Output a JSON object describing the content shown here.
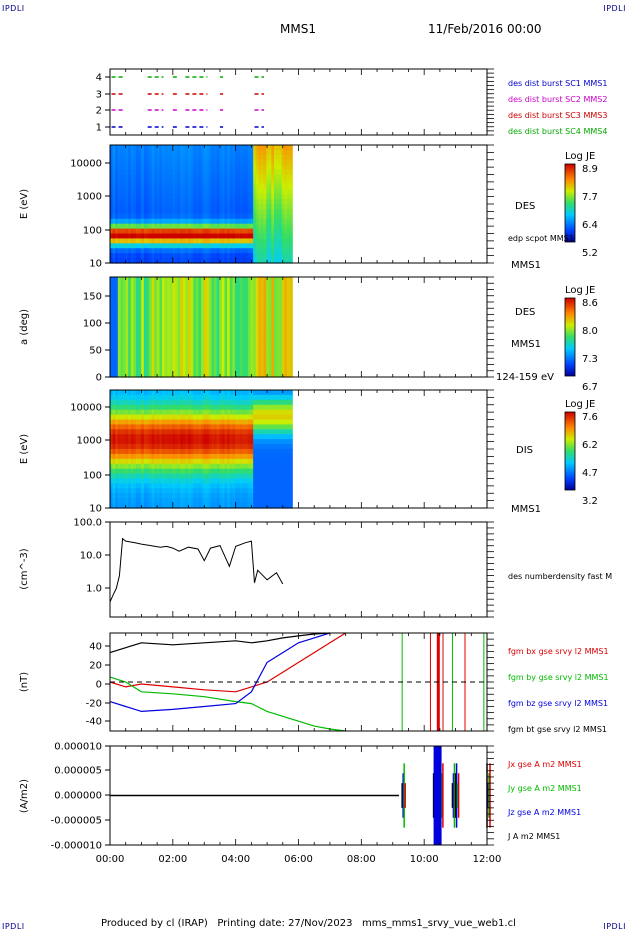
{
  "header": {
    "corner_label": "IPDLI",
    "spacecraft": "MMS1",
    "date_time": "11/Feb/2016 00:00"
  },
  "footer": {
    "text": "Produced by cl (IRAP)   Printing date: 27/Nov/2023   mms_mms1_srvy_vue_web1.cl"
  },
  "panels": {
    "burst": {
      "yticks": [
        "1",
        "2",
        "3",
        "4"
      ],
      "legend": [
        {
          "text": "des dist burst SC1 MMS1",
          "color": "#0000cc"
        },
        {
          "text": "des dist burst SC2 MMS2",
          "color": "#cc00cc"
        },
        {
          "text": "des dist burst SC3 MMS3",
          "color": "#cc0000"
        },
        {
          "text": "des dist burst SC4 MMS4",
          "color": "#00aa00"
        }
      ]
    },
    "des_energy": {
      "ylabel": "E (eV)",
      "yticks": [
        "10",
        "100",
        "1000",
        "10000"
      ],
      "right_label": "DES",
      "right_sub": "edp scpot MMS1",
      "bottom_right": "MMS1",
      "cbar_title": "Log JE",
      "cbar_ticks": [
        "8.9",
        "7.7",
        "6.4",
        "5.2"
      ]
    },
    "des_pitch": {
      "ylabel": "a (deg)",
      "yticks": [
        "0",
        "50",
        "100",
        "150"
      ],
      "right_label": "DES",
      "right_sub": "MMS1",
      "bottom_right": "124-159 eV",
      "cbar_title": "Log JE",
      "cbar_ticks": [
        "8.6",
        "8.0",
        "7.3",
        "6.7"
      ]
    },
    "dis_energy": {
      "ylabel": "E (eV)",
      "yticks": [
        "10",
        "100",
        "1000",
        "10000"
      ],
      "right_label": "DIS",
      "bottom_right": "MMS1",
      "cbar_title": "Log JE",
      "cbar_ticks": [
        "7.6",
        "6.2",
        "4.7",
        "3.2"
      ]
    },
    "density": {
      "ylabel": "(cm^-3)",
      "yticks": [
        "1.0",
        "10.0",
        "100.0"
      ],
      "right_label": "des numberdensity fast M"
    },
    "bfield": {
      "ylabel": "(nT)",
      "yticks": [
        "-40",
        "-20",
        "0",
        "20",
        "40"
      ],
      "legend": [
        {
          "text": "fgm bx gse srvy l2 MMS1",
          "color": "#dd0000"
        },
        {
          "text": "fgm by gse srvy l2 MMS1",
          "color": "#00bb00"
        },
        {
          "text": "fgm bz gse srvy l2 MMS1",
          "color": "#0000dd"
        },
        {
          "text": "fgm bt gse srvy l2 MMS1",
          "color": "#000000"
        }
      ]
    },
    "current": {
      "ylabel": "(A/m2)",
      "yticks": [
        "-0.000010",
        "-0.000005",
        "0.000000",
        "0.000005",
        "0.000010"
      ],
      "legend": [
        {
          "text": "Jx gse A m2 MMS1",
          "color": "#dd0000"
        },
        {
          "text": "Jy gse A m2 MMS1",
          "color": "#00bb00"
        },
        {
          "text": "Jz gse A m2 MMS1",
          "color": "#0000dd"
        },
        {
          "text": "J A m2 MMS1",
          "color": "#000000"
        }
      ]
    }
  },
  "xaxis": {
    "ticks": [
      "00:00",
      "02:00",
      "04:00",
      "06:00",
      "08:00",
      "10:00",
      "12:00"
    ]
  },
  "chart_data": [
    {
      "type": "scatter",
      "panel": "burst",
      "x_unit": "hours",
      "xlim": [
        0,
        12
      ],
      "ylim": [
        0.5,
        4.5
      ],
      "series": [
        {
          "name": "des dist burst SC1 MMS1",
          "y": 1,
          "color": "#0000cc",
          "intervals": [
            [
              0.05,
              0.45
            ],
            [
              1.2,
              1.7
            ],
            [
              2.0,
              2.2
            ],
            [
              2.4,
              3.1
            ],
            [
              3.5,
              3.6
            ],
            [
              4.6,
              4.9
            ]
          ]
        },
        {
          "name": "des dist burst SC2 MMS2",
          "y": 2,
          "color": "#cc00cc",
          "intervals": [
            [
              0.05,
              0.45
            ],
            [
              1.2,
              1.7
            ],
            [
              2.0,
              2.2
            ],
            [
              2.4,
              3.1
            ],
            [
              3.5,
              3.6
            ],
            [
              4.6,
              4.9
            ]
          ]
        },
        {
          "name": "des dist burst SC3 MMS3",
          "y": 3,
          "color": "#cc0000",
          "intervals": [
            [
              0.05,
              0.45
            ],
            [
              1.2,
              1.7
            ],
            [
              2.0,
              2.2
            ],
            [
              2.4,
              3.1
            ],
            [
              3.5,
              3.6
            ],
            [
              4.6,
              4.9
            ]
          ]
        },
        {
          "name": "des dist burst SC4 MMS4",
          "y": 4,
          "color": "#00aa00",
          "intervals": [
            [
              0.05,
              0.45
            ],
            [
              1.2,
              1.7
            ],
            [
              2.0,
              2.2
            ],
            [
              2.4,
              3.1
            ],
            [
              3.5,
              3.6
            ],
            [
              4.6,
              4.9
            ]
          ]
        }
      ]
    },
    {
      "type": "heatmap",
      "panel": "des_energy",
      "x_unit": "hours",
      "xlim": [
        0,
        12
      ],
      "y_scale": "log",
      "ylim": [
        10,
        30000
      ],
      "data_end_hour": 5.8,
      "colorbar": {
        "title": "Log JE",
        "range": [
          5.2,
          8.9
        ]
      },
      "profile": "electron plasma sheet band near 50-100 eV until ~04:30, broad 1000-10000 eV afterwards"
    },
    {
      "type": "heatmap",
      "panel": "des_pitch",
      "x_unit": "hours",
      "xlim": [
        0,
        12
      ],
      "ylim": [
        0,
        180
      ],
      "data_end_hour": 5.8,
      "colorbar": {
        "title": "Log JE",
        "range": [
          6.7,
          8.6
        ]
      }
    },
    {
      "type": "heatmap",
      "panel": "dis_energy",
      "x_unit": "hours",
      "xlim": [
        0,
        12
      ],
      "y_scale": "log",
      "ylim": [
        10,
        30000
      ],
      "data_end_hour": 5.8,
      "colorbar": {
        "title": "Log JE",
        "range": [
          3.2,
          7.6
        ]
      }
    },
    {
      "type": "line",
      "panel": "density",
      "name": "des numberdensity fast M",
      "x_unit": "hours",
      "y_scale": "log",
      "ylim": [
        0.1,
        100
      ],
      "x": [
        0.0,
        0.1,
        0.2,
        0.3,
        0.4,
        0.5,
        0.8,
        1.0,
        1.3,
        1.6,
        1.8,
        2.0,
        2.2,
        2.5,
        2.8,
        3.0,
        3.2,
        3.5,
        3.8,
        4.0,
        4.3,
        4.5,
        4.6,
        4.7,
        5.0,
        5.3,
        5.5
      ],
      "y": [
        0.3,
        0.5,
        0.8,
        2.0,
        30,
        25,
        22,
        20,
        18,
        16,
        17,
        15,
        12,
        16,
        14,
        6,
        15,
        18,
        4,
        17,
        22,
        25,
        1.2,
        3,
        1.5,
        2.5,
        1.1
      ]
    },
    {
      "type": "line",
      "panel": "bfield",
      "x_unit": "hours",
      "ylim": [
        -50,
        50
      ],
      "series": [
        {
          "name": "fgm bx gse srvy l2 MMS1",
          "color": "#dd0000",
          "x": [
            0,
            0.5,
            1,
            2,
            3,
            4,
            4.5,
            5,
            5.5,
            6,
            6.5,
            7,
            7.5
          ],
          "y": [
            0,
            -5,
            -2,
            -5,
            -8,
            -10,
            -5,
            0,
            10,
            20,
            30,
            40,
            50
          ]
        },
        {
          "name": "fgm by gse srvy l2 MMS1",
          "color": "#00bb00",
          "x": [
            0,
            0.5,
            1,
            2,
            3,
            4,
            4.5,
            5,
            5.5,
            6,
            6.5,
            7,
            7.5
          ],
          "y": [
            5,
            0,
            -10,
            -12,
            -15,
            -20,
            -22,
            -30,
            -35,
            -40,
            -45,
            -48,
            -50
          ]
        },
        {
          "name": "fgm bz gse srvy l2 MMS1",
          "color": "#0000dd",
          "x": [
            0,
            0.5,
            1,
            2,
            3,
            4,
            4.5,
            5,
            5.5,
            6,
            6.5,
            7
          ],
          "y": [
            -20,
            -25,
            -30,
            -28,
            -25,
            -22,
            -10,
            20,
            30,
            40,
            45,
            50
          ]
        },
        {
          "name": "fgm bt gse srvy l2 MMS1",
          "color": "#000000",
          "x": [
            0,
            0.5,
            1,
            2,
            3,
            4,
            4.5,
            5,
            5.5,
            6,
            6.5,
            7
          ],
          "y": [
            30,
            35,
            40,
            38,
            40,
            42,
            40,
            42,
            45,
            47,
            49,
            50
          ]
        }
      ]
    },
    {
      "type": "line",
      "panel": "current",
      "x_unit": "hours",
      "ylim": [
        -1e-05,
        1e-05
      ],
      "series": [
        {
          "name": "Jx gse A m2 MMS1",
          "color": "#dd0000"
        },
        {
          "name": "Jy gse A m2 MMS1",
          "color": "#00bb00"
        },
        {
          "name": "Jz gse A m2 MMS1",
          "color": "#0000dd"
        },
        {
          "name": "J A m2 MMS1",
          "color": "#000000"
        }
      ],
      "spikes_hours": [
        9.3,
        10.3,
        10.5,
        10.9,
        11.0,
        12.0
      ]
    }
  ]
}
